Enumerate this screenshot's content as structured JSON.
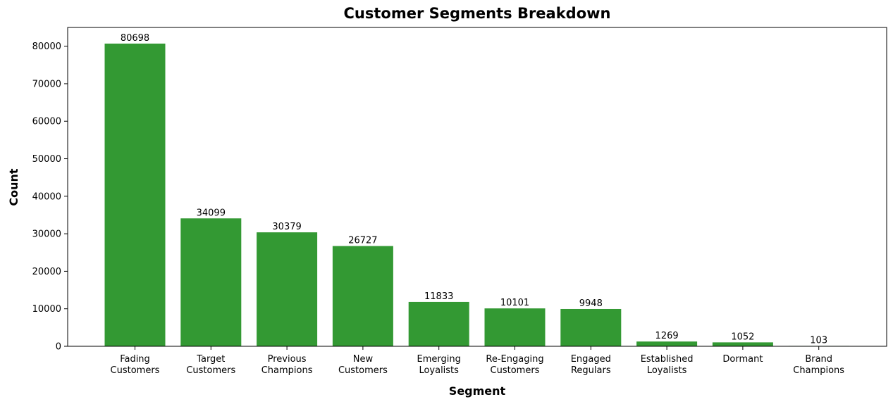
{
  "chart_data": {
    "type": "bar",
    "title": "Customer Segments Breakdown",
    "xlabel": "Segment",
    "ylabel": "Count",
    "categories": [
      [
        "Fading",
        "Customers"
      ],
      [
        "Target",
        "Customers"
      ],
      [
        "Previous",
        "Champions"
      ],
      [
        "New",
        "Customers"
      ],
      [
        "Emerging",
        "Loyalists"
      ],
      [
        "Re-Engaging",
        "Customers"
      ],
      [
        "Engaged",
        "Regulars"
      ],
      [
        "Established",
        "Loyalists"
      ],
      [
        "Dormant"
      ],
      [
        "Brand",
        "Champions"
      ]
    ],
    "values": [
      80698,
      34099,
      30379,
      26727,
      11833,
      10101,
      9948,
      1269,
      1052,
      103
    ],
    "data_labels": [
      "80698",
      "34099",
      "30379",
      "26727",
      "11833",
      "10101",
      "9948",
      "1269",
      "1052",
      "103"
    ],
    "ylim": [
      0,
      85000
    ],
    "yticks": [
      0,
      10000,
      20000,
      30000,
      40000,
      50000,
      60000,
      70000,
      80000
    ],
    "ytick_labels": [
      "0",
      "10000",
      "20000",
      "30000",
      "40000",
      "50000",
      "60000",
      "70000",
      "80000"
    ],
    "bar_color": "#339933",
    "grid": false,
    "legend": "none"
  }
}
